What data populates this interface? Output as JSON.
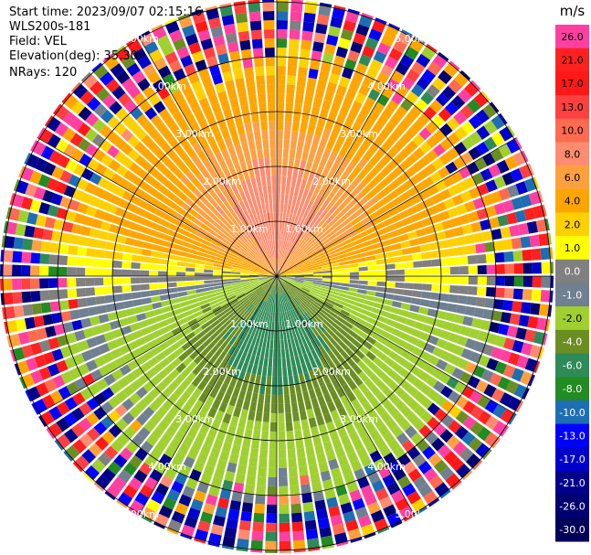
{
  "info": {
    "start_time": "Start time: 2023/09/07 02:15:16",
    "instrument": "WLS200s-181",
    "field": "Field: VEL",
    "elevation": "Elevation(deg): 35.30",
    "nrays": "NRays: 120"
  },
  "chart_data": {
    "type": "heatmap",
    "projection": "polar-ppi",
    "field": "VEL",
    "nrays": 120,
    "range_rings_km": [
      1.0,
      2.0,
      3.0,
      4.0,
      5.0
    ],
    "ring_labels": [
      "1.00km",
      "2.00km",
      "3.00km",
      "4.00km",
      "5.00km"
    ],
    "max_range_km": 5.0,
    "spokes_deg": [
      0,
      30,
      60,
      90,
      120,
      150,
      180,
      210,
      240,
      270,
      300,
      330
    ],
    "colorbar": {
      "title": "m/s",
      "tick_labels": [
        "26.0",
        "21.0",
        "17.0",
        "13.0",
        "10.0",
        "8.0",
        "6.0",
        "4.0",
        "2.0",
        "1.0",
        "0.0",
        "-1.0",
        "-2.0",
        "-4.0",
        "-6.0",
        "-8.0",
        "-10.0",
        "-13.0",
        "-17.0",
        "-21.0",
        "-26.0",
        "-30.0"
      ],
      "colors": [
        "#ff40a0",
        "#ff2020",
        "#ff1818",
        "#ff4040",
        "#ff6a50",
        "#ff8c70",
        "#ffa040",
        "#ffa500",
        "#ffd000",
        "#ffff00",
        "#808080",
        "#708090",
        "#a0d030",
        "#6b8e23",
        "#2e8b57",
        "#228b22",
        "#1e6eb4",
        "#0000ff",
        "#0000cd",
        "#00008b",
        "#000070",
        "#00005a"
      ],
      "vmin": -30.0,
      "vmax": 30.0
    },
    "pattern": {
      "north_sector_velocity": "positive (2 to 8 m/s)",
      "south_sector_velocity": "negative (-2 to -8 m/s)",
      "near_horizontal_rays": "near zero",
      "outer_range": "noise beyond ~4 km"
    }
  }
}
